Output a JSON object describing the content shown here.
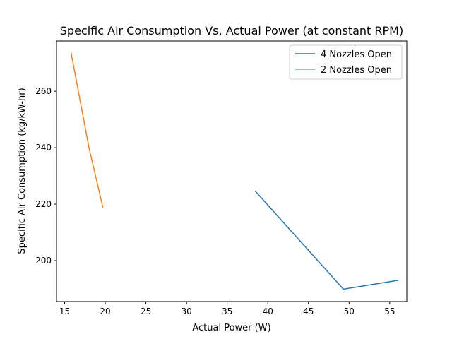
{
  "chart_data": {
    "type": "line",
    "title": "Specific Air Consumption Vs, Actual Power (at constant RPM)",
    "xlabel": "Actual Power (W)",
    "ylabel": "Specific Air Consumption (kg/kW-hr)",
    "xlim": [
      14.0,
      57.1
    ],
    "ylim": [
      185.5,
      277.8
    ],
    "xticks": [
      15,
      20,
      25,
      30,
      35,
      40,
      45,
      50,
      55
    ],
    "yticks": [
      200,
      220,
      240,
      260
    ],
    "grid": false,
    "legend_position": "top-right",
    "series": [
      {
        "name": "4 Nozzles Open",
        "color": "#1f77b4",
        "x": [
          38.5,
          49.3,
          56.0
        ],
        "y": [
          224.5,
          189.9,
          193.0
        ]
      },
      {
        "name": "2 Nozzles Open",
        "color": "#ff7f0e",
        "x": [
          15.8,
          18.0,
          19.7
        ],
        "y": [
          273.6,
          240.0,
          218.9
        ]
      }
    ]
  }
}
